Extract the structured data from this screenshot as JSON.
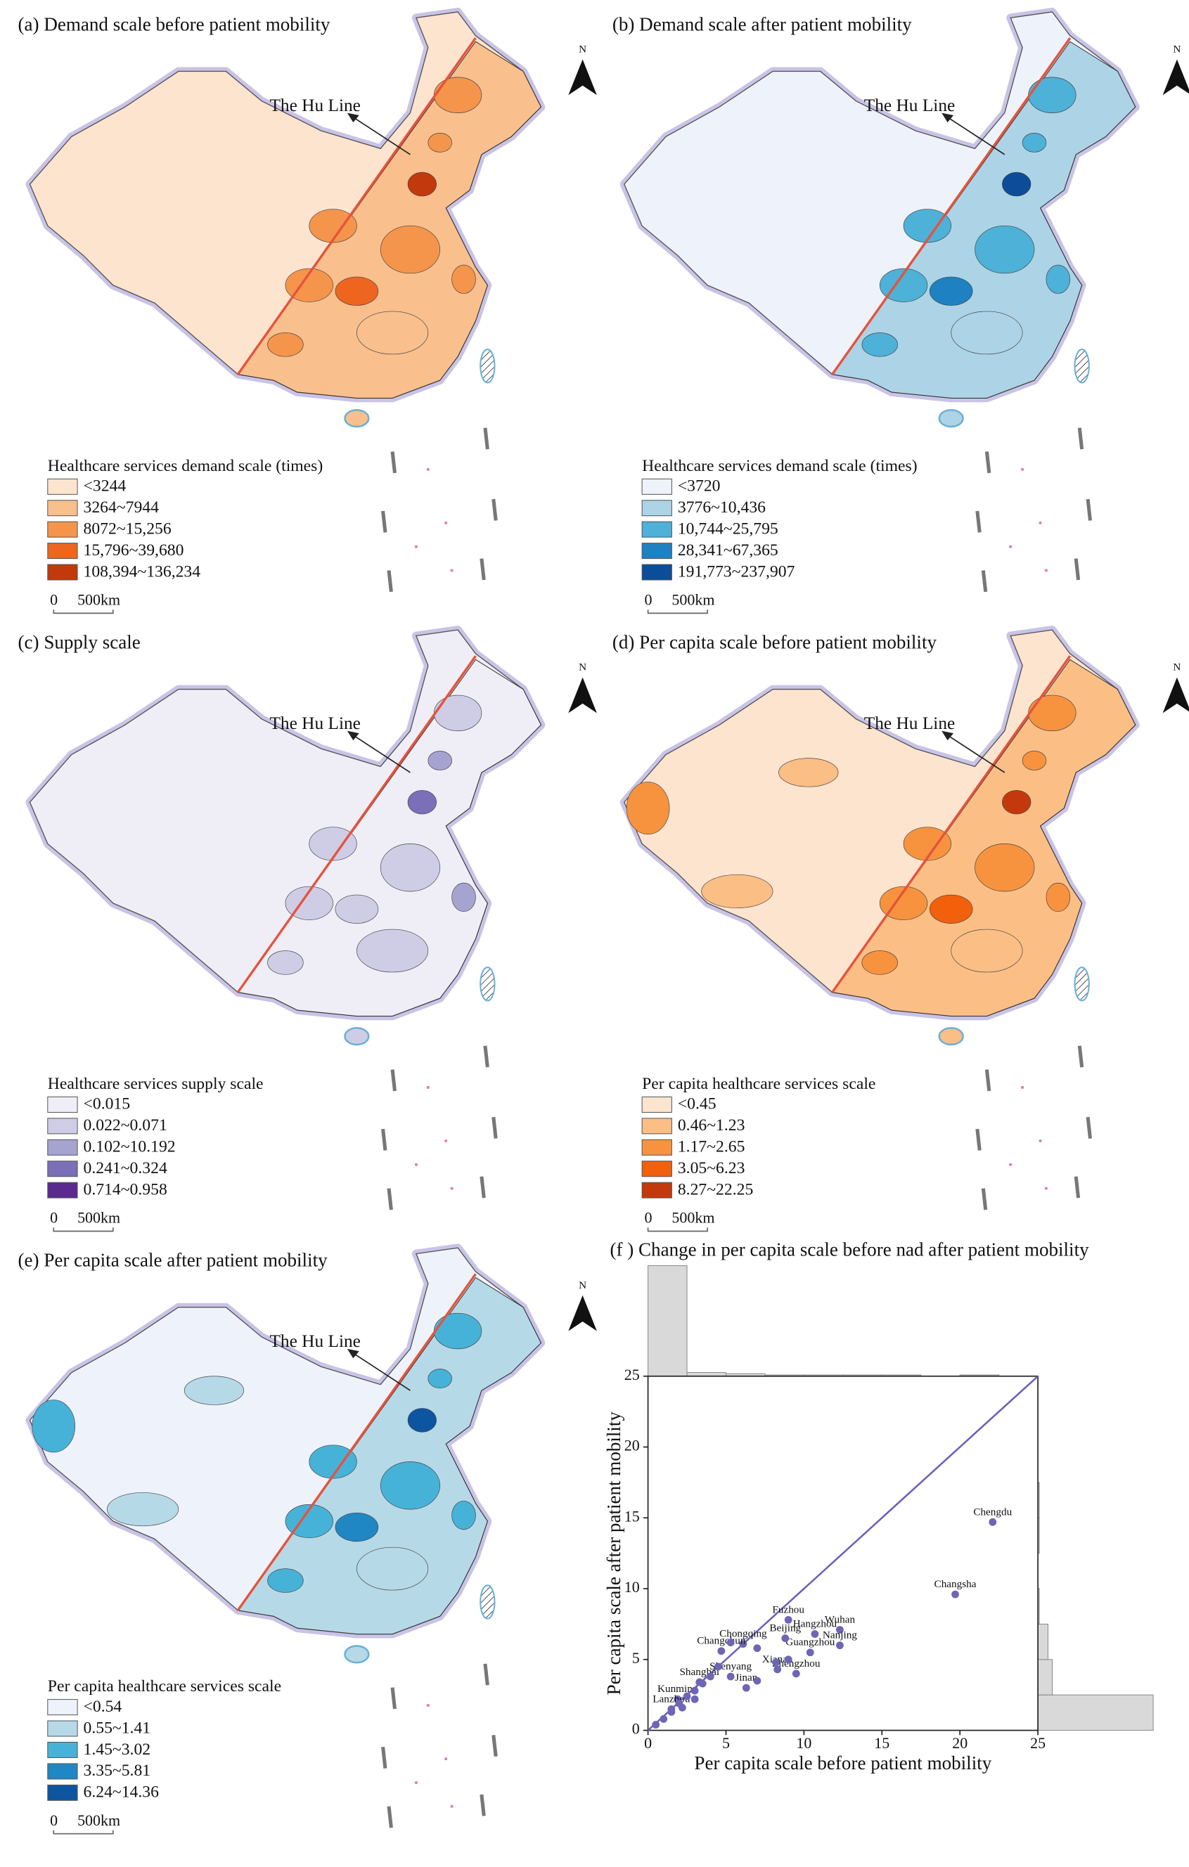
{
  "maps": [
    {
      "title": "(a) Demand scale before patient mobility",
      "legend_title": "Healthcare services demand scale (times)",
      "hu_line": "The Hu Line",
      "north": "N",
      "scale_bar": [
        "0",
        "500km"
      ],
      "legend": [
        {
          "label": "<3244",
          "color": "#fde4cf"
        },
        {
          "label": "3264~7944",
          "color": "#f9bf8c"
        },
        {
          "label": "8072~15,256",
          "color": "#f5954b"
        },
        {
          "label": "15,796~39,680",
          "color": "#ee6520"
        },
        {
          "label": "108,394~136,234",
          "color": "#c2390c"
        }
      ]
    },
    {
      "title": "(b) Demand scale after patient mobility",
      "legend_title": "Healthcare services demand scale (times)",
      "hu_line": "The Hu Line",
      "north": "N",
      "scale_bar": [
        "0",
        "500km"
      ],
      "legend": [
        {
          "label": "<3720",
          "color": "#eef3fb"
        },
        {
          "label": "3776~10,436",
          "color": "#acd4e6"
        },
        {
          "label": "10,744~25,795",
          "color": "#4db1d8"
        },
        {
          "label": "28,341~67,365",
          "color": "#1e81c1"
        },
        {
          "label": "191,773~237,907",
          "color": "#0b4d99"
        }
      ]
    },
    {
      "title": "(c) Supply scale",
      "legend_title": "Healthcare services supply scale",
      "hu_line": "The Hu Line",
      "north": "N",
      "scale_bar": [
        "0",
        "500km"
      ],
      "legend": [
        {
          "label": "<0.015",
          "color": "#efeef6"
        },
        {
          "label": "0.022~0.071",
          "color": "#cfcde6"
        },
        {
          "label": "0.102~10.192",
          "color": "#a7a3d1"
        },
        {
          "label": "0.241~0.324",
          "color": "#7a6fb8"
        },
        {
          "label": "0.714~0.958",
          "color": "#5a2a91"
        }
      ]
    },
    {
      "title": "(d) Per capita scale before patient mobility",
      "legend_title": "Per capita healthcare services scale",
      "hu_line": "The Hu Line",
      "north": "N",
      "scale_bar": [
        "0",
        "500km"
      ],
      "legend": [
        {
          "label": "<0.45",
          "color": "#fde4cf"
        },
        {
          "label": "0.46~1.23",
          "color": "#fbbe85"
        },
        {
          "label": "1.17~2.65",
          "color": "#f7933f"
        },
        {
          "label": "3.05~6.23",
          "color": "#f2600c"
        },
        {
          "label": "8.27~22.25",
          "color": "#c4390b"
        }
      ]
    },
    {
      "title": "(e) Per capita scale after patient mobility",
      "legend_title": "Per capita healthcare services scale",
      "hu_line": "The Hu Line",
      "north": "N",
      "scale_bar": [
        "0",
        "500km"
      ],
      "legend": [
        {
          "label": "<0.54",
          "color": "#eef3fb"
        },
        {
          "label": "0.55~1.41",
          "color": "#b6d9e8"
        },
        {
          "label": "1.45~3.02",
          "color": "#47b2d8"
        },
        {
          "label": "3.35~5.81",
          "color": "#1f87c4"
        },
        {
          "label": "6.24~14.36",
          "color": "#0d55a1"
        }
      ]
    }
  ],
  "chart_data": {
    "type": "scatter",
    "title": "(f ) Change in per capita scale before nad after patient mobility",
    "x_label": "Per capita scale before patient mobility",
    "y_label": "Per capita scale after patient mobility",
    "xlim": [
      0,
      25
    ],
    "ylim": [
      0,
      25
    ],
    "xticks": [
      0,
      5,
      10,
      15,
      20,
      25
    ],
    "yticks": [
      0,
      5,
      10,
      15,
      20,
      25
    ],
    "color": "#6f65b5",
    "reference_line_color": "#6a60b8",
    "histogram_color": "#d9d9d9",
    "x": [
      22.1,
      19.7,
      9.0,
      10.7,
      12.3,
      12.3,
      10.4,
      9.5,
      8.3,
      8.8,
      6.1,
      4.7,
      5.3,
      3.3,
      6.3,
      1.9,
      1.5,
      0.5,
      1.0,
      1.5,
      2.0,
      2.5,
      3.0,
      3.5,
      4.0,
      4.5,
      5.3,
      7.0,
      8.2,
      9.0,
      7.0,
      2.2,
      3.0
    ],
    "values": [
      14.7,
      9.6,
      7.8,
      6.8,
      7.1,
      6.0,
      5.5,
      4.0,
      4.3,
      6.5,
      6.1,
      5.6,
      3.8,
      3.4,
      3.0,
      2.2,
      1.5,
      0.4,
      0.8,
      1.3,
      1.9,
      2.4,
      2.8,
      3.3,
      3.8,
      4.5,
      6.2,
      5.8,
      4.8,
      5.0,
      3.5,
      1.6,
      2.2
    ],
    "point_labels": [
      "Chengdu",
      "Changsha",
      "Fuzhou",
      "Hangzhou",
      "Wuhan",
      "Nanjing",
      "Guangzhou",
      "Zhengzhou",
      "Xianan",
      "Beijing",
      "Chongqing",
      "Changchun",
      "Shenyang",
      "Shanghai",
      "Jinan",
      "Kunming",
      "Lanzhou",
      null,
      null,
      null,
      null,
      null,
      null,
      null,
      null,
      null,
      null,
      null,
      null,
      null,
      null,
      null,
      null
    ],
    "x_hist": {
      "bins": [
        0,
        2.5,
        5,
        7.5,
        10,
        12.5,
        15,
        17.5,
        20,
        22.5,
        25
      ],
      "counts": [
        90,
        3,
        2,
        1,
        1,
        1,
        1,
        0,
        1,
        0
      ]
    },
    "y_hist": {
      "bins": [
        0,
        2.5,
        5,
        7.5,
        10,
        12.5,
        15,
        17.5,
        20,
        22.5,
        25
      ],
      "counts": [
        80,
        10,
        7,
        1,
        0,
        1,
        1,
        0,
        0,
        0
      ]
    }
  }
}
